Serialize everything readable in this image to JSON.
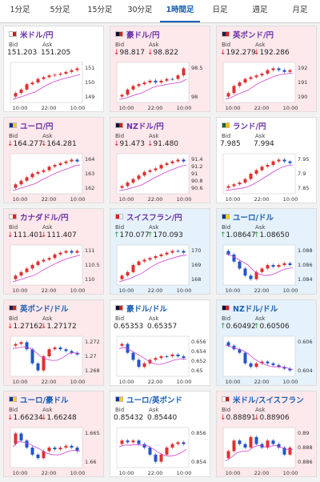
{
  "tabs": [
    "1分足",
    "5分足",
    "15分足",
    "30分足",
    "1時間足",
    "日足",
    "週足",
    "月足"
  ],
  "cards": [
    {
      "pair": "米ドル/円",
      "bid_label": "Bid",
      "ask_label": "Ask",
      "bid": "151.203",
      "ask": "151.205",
      "y_ticks": [
        "151",
        "150",
        "149"
      ],
      "x_ticks": [
        "10:00",
        "22:00",
        "10:00"
      ]
    },
    {
      "pair": "豪ドル/円",
      "bid_label": "Bid",
      "ask_label": "Ask",
      "bid": "↓98.817",
      "ask": "↓98.822",
      "y_ticks": [
        "98.5",
        "98"
      ],
      "x_ticks": [
        "10:00",
        "22:00",
        "10:00"
      ]
    },
    {
      "pair": "英ポンド/円",
      "bid_label": "Bid",
      "ask_label": "Ask",
      "bid": "↓192.279",
      "ask": "↓192.286",
      "y_ticks": [
        "192",
        "191",
        "190"
      ],
      "x_ticks": [
        "10:00",
        "22:00",
        "10:00"
      ]
    },
    {
      "pair": "ユーロ/円",
      "bid_label": "Bid",
      "ask_label": "Ask",
      "bid": "↓164.277",
      "ask": "↓164.281",
      "y_ticks": [
        "164",
        "163",
        "162"
      ],
      "x_ticks": [
        "10:00",
        "22:00",
        "10:00"
      ]
    },
    {
      "pair": "NZドル/円",
      "bid_label": "Bid",
      "ask_label": "Ask",
      "bid": "↓91.473",
      "ask": "↓91.480",
      "y_ticks": [
        "91.4",
        "91.2",
        "91",
        "90.8",
        "90.6"
      ],
      "x_ticks": [
        "10:00",
        "22:00",
        "10:00"
      ]
    },
    {
      "pair": "ランド/円",
      "bid_label": "Bid",
      "ask_label": "Ask",
      "bid": "7.985",
      "ask": "7.994",
      "y_ticks": [
        "7.95",
        "7.9",
        "7.85"
      ],
      "x_ticks": [
        "10:00",
        "22:00",
        "10:00"
      ]
    },
    {
      "pair": "カナダドル/円",
      "bid_label": "Bid",
      "ask_label": "Ask",
      "bid": "↓111.401",
      "ask": "↓111.407",
      "y_ticks": [
        "111",
        "110.5",
        "110"
      ],
      "x_ticks": [
        "10:00",
        "22:00",
        "10:00"
      ]
    },
    {
      "pair": "スイスフラン/円",
      "bid_label": "Bid",
      "ask_label": "Ask",
      "bid": "↑170.077",
      "ask": "↑170.093",
      "y_ticks": [
        "170",
        "169",
        "168"
      ],
      "x_ticks": [
        "10:00",
        "22:00",
        "10:00"
      ]
    },
    {
      "pair": "ユーロ/ドル",
      "bid_label": "Bid",
      "ask_label": "Ask",
      "bid": "↑1.08647",
      "ask": "↑1.08650",
      "y_ticks": [
        "1.088",
        "1.086",
        "1.084"
      ],
      "x_ticks": [
        "10:00",
        "22:00",
        "10:00"
      ]
    },
    {
      "pair": "英ポンド/ドル",
      "bid_label": "Bid",
      "ask_label": "Ask",
      "bid": "↓1.27162",
      "ask": "↓1.27172",
      "y_ticks": [
        "1.272",
        "1.27",
        "1.268"
      ],
      "x_ticks": [
        "10:00",
        "22:00",
        "10:00"
      ]
    },
    {
      "pair": "豪ドル/ドル",
      "bid_label": "Bid",
      "ask_label": "Ask",
      "bid": "0.65353",
      "ask": "0.65357",
      "y_ticks": [
        "0.656",
        "0.654",
        "0.652",
        "0.65"
      ],
      "x_ticks": [
        "10:00",
        "22:00",
        "10:00"
      ]
    },
    {
      "pair": "NZドル/ドル",
      "bid_label": "Bid",
      "ask_label": "Ask",
      "bid": "↑0.60492",
      "ask": "↑0.60506",
      "y_ticks": [
        "0.606",
        "0.604"
      ],
      "x_ticks": [
        "10:00",
        "22:00",
        "10:00"
      ]
    },
    {
      "pair": "ユーロ/豪ドル",
      "bid_label": "Bid",
      "ask_label": "Ask",
      "bid": "↓1.66234",
      "ask": "↓1.66248",
      "y_ticks": [
        "1.665",
        "1.66"
      ],
      "x_ticks": [
        "10:00",
        "22:00",
        "10:00"
      ]
    },
    {
      "pair": "ユーロ/英ポンド",
      "bid_label": "Bid",
      "ask_label": "Ask",
      "bid": "0.85432",
      "ask": "0.85440",
      "y_ticks": [
        "0.856",
        "0.854"
      ],
      "x_ticks": [
        "10:00",
        "22:00",
        "10:00"
      ]
    },
    {
      "pair": "米ドル/スイスフラン",
      "bid_label": "Bid",
      "ask_label": "Ask",
      "bid": "↓0.88891",
      "ask": "↓0.88906",
      "y_ticks": [
        "0.89",
        "0.888",
        "0.886"
      ],
      "x_ticks": [
        "10:00",
        "22:00",
        "10:00"
      ]
    }
  ]
}
